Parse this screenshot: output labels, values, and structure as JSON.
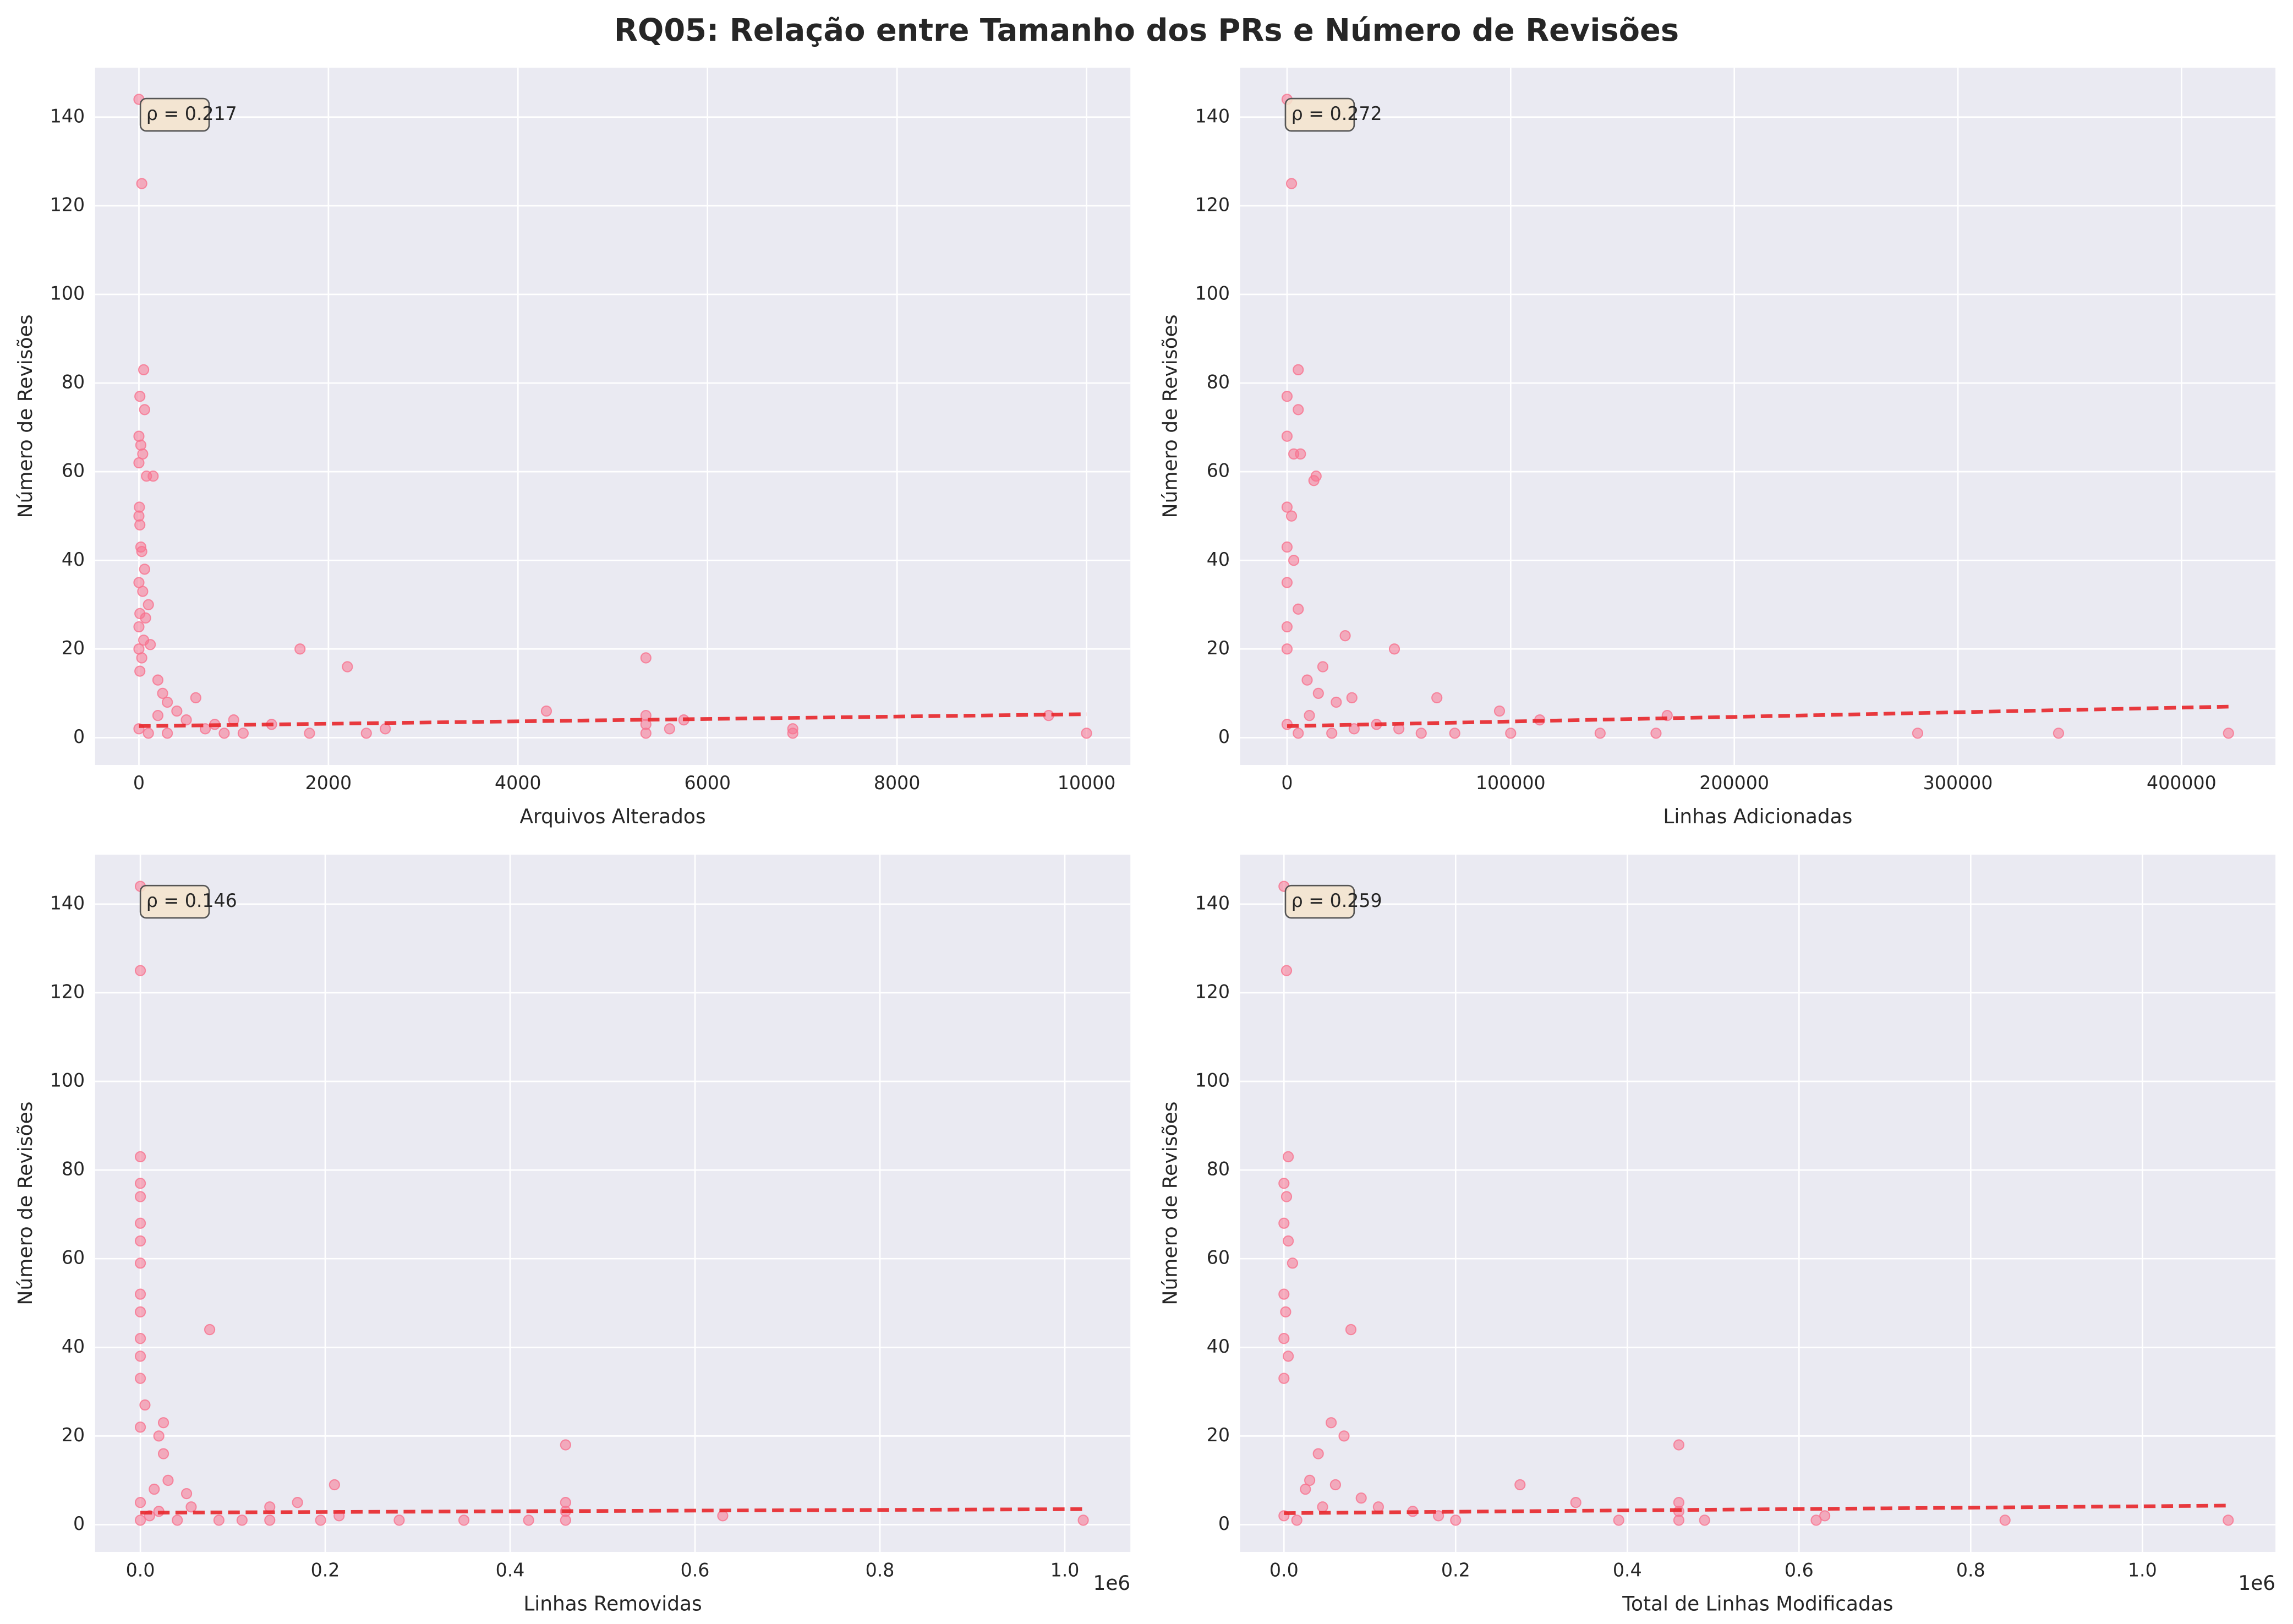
{
  "title": "RQ05: Relação entre Tamanho dos PRs e Número de Revisões",
  "chart_data": [
    {
      "type": "scatter",
      "xlabel": "Arquivos Alterados",
      "ylabel": "Número de Revisões",
      "annotation": "ρ = 0.217",
      "color": "#f7738f",
      "xlim": [
        -463,
        10463
      ],
      "ylim": [
        -6.15,
        151.15
      ],
      "xticks": [
        0,
        2000,
        4000,
        6000,
        8000,
        10000
      ],
      "yticks": [
        0,
        20,
        40,
        60,
        80,
        100,
        120,
        140
      ],
      "grid": true,
      "x": [
        0,
        30,
        50,
        10,
        60,
        0,
        20,
        40,
        0,
        80,
        150,
        5,
        0,
        10,
        20,
        30,
        60,
        0,
        40,
        100,
        10,
        70,
        0,
        50,
        120,
        0,
        30,
        200,
        10,
        250,
        300,
        400,
        500,
        600,
        700,
        800,
        900,
        1000,
        1100,
        1400,
        1700,
        1800,
        2200,
        2400,
        2600,
        4300,
        5350,
        5350,
        5350,
        5350,
        5600,
        5750,
        6900,
        6900,
        9600,
        10000,
        0,
        100,
        300,
        200
      ],
      "values": [
        144,
        125,
        83,
        77,
        74,
        68,
        66,
        64,
        62,
        59,
        59,
        52,
        50,
        48,
        43,
        42,
        38,
        35,
        33,
        30,
        28,
        27,
        25,
        22,
        21,
        20,
        18,
        13,
        15,
        10,
        8,
        6,
        4,
        9,
        2,
        3,
        1,
        4,
        1,
        3,
        20,
        1,
        16,
        1,
        2,
        6,
        18,
        5,
        3,
        1,
        2,
        4,
        2,
        1,
        5,
        1,
        2,
        1,
        1,
        5
      ],
      "trend": {
        "x": [
          0,
          10000
        ],
        "y": [
          2.6,
          5.3
        ],
        "color": "#e8262a"
      }
    },
    {
      "type": "scatter",
      "xlabel": "Linhas Adicionadas",
      "ylabel": "Número de Revisões",
      "annotation": "ρ = 0.272",
      "color": "#f7738f",
      "xlim": [
        -21000,
        442000
      ],
      "ylim": [
        -6.15,
        151.15
      ],
      "xticks": [
        0,
        100000,
        200000,
        300000,
        400000
      ],
      "yticks": [
        0,
        20,
        40,
        60,
        80,
        100,
        120,
        140
      ],
      "grid": true,
      "x": [
        0,
        2000,
        5000,
        0,
        5000,
        0,
        3000,
        6000,
        13000,
        12000,
        0,
        2000,
        0,
        3000,
        0,
        5000,
        0,
        26000,
        0,
        48000,
        16000,
        9000,
        14000,
        29000,
        67000,
        22000,
        95000,
        113000,
        170000,
        40000,
        60000,
        75000,
        100000,
        140000,
        165000,
        282000,
        345000,
        421000,
        30000,
        10000,
        0,
        5000,
        20000,
        50000
      ],
      "values": [
        144,
        125,
        83,
        77,
        74,
        68,
        64,
        64,
        59,
        58,
        52,
        50,
        43,
        40,
        35,
        29,
        25,
        23,
        20,
        20,
        16,
        13,
        10,
        9,
        9,
        8,
        6,
        4,
        5,
        3,
        1,
        1,
        1,
        1,
        1,
        1,
        1,
        1,
        2,
        5,
        3,
        1,
        1,
        2
      ],
      "trend": {
        "x": [
          0,
          421000
        ],
        "y": [
          2.6,
          7
        ],
        "color": "#e8262a"
      }
    },
    {
      "type": "scatter",
      "xlabel": "Linhas Removidas",
      "ylabel": "Número de Revisões",
      "annotation": "ρ = 0.146",
      "color": "#f7738f",
      "x_offset_label": "1e6",
      "xlim": [
        -49000,
        1071000
      ],
      "ylim": [
        -6.15,
        151.15
      ],
      "xticks": [
        {
          "value": 0,
          "label": "0.0"
        },
        {
          "value": 200000,
          "label": "0.2"
        },
        {
          "value": 400000,
          "label": "0.4"
        },
        {
          "value": 600000,
          "label": "0.6"
        },
        {
          "value": 800000,
          "label": "0.8"
        },
        {
          "value": 1000000,
          "label": "1.0"
        }
      ],
      "yticks": [
        0,
        20,
        40,
        60,
        80,
        100,
        120,
        140
      ],
      "grid": true,
      "x": [
        0,
        0,
        0,
        0,
        0,
        0,
        0,
        0,
        0,
        0,
        0,
        0,
        0,
        5000,
        0,
        75000,
        25000,
        20000,
        25000,
        30000,
        15000,
        50000,
        55000,
        20000,
        40000,
        85000,
        110000,
        140000,
        140000,
        170000,
        210000,
        215000,
        195000,
        280000,
        350000,
        420000,
        460000,
        460000,
        460000,
        460000,
        630000,
        1020000,
        0,
        10000,
        0
      ],
      "values": [
        144,
        125,
        83,
        77,
        74,
        68,
        64,
        59,
        52,
        48,
        42,
        38,
        33,
        27,
        22,
        44,
        23,
        20,
        16,
        10,
        8,
        7,
        4,
        3,
        1,
        1,
        1,
        4,
        1,
        5,
        9,
        2,
        1,
        1,
        1,
        1,
        18,
        5,
        3,
        1,
        2,
        1,
        1,
        2,
        5
      ],
      "trend": {
        "x": [
          0,
          1020000
        ],
        "y": [
          2.7,
          3.5
        ],
        "color": "#e8262a"
      }
    },
    {
      "type": "scatter",
      "xlabel": "Total de Linhas Modificadas",
      "ylabel": "Número de Revisões",
      "annotation": "ρ = 0.259",
      "color": "#f7738f",
      "x_offset_label": "1e6",
      "xlim": [
        -51100,
        1155000
      ],
      "ylim": [
        -6.15,
        151.15
      ],
      "xticks": [
        {
          "value": 0,
          "label": "0.0"
        },
        {
          "value": 200000,
          "label": "0.2"
        },
        {
          "value": 400000,
          "label": "0.4"
        },
        {
          "value": 600000,
          "label": "0.6"
        },
        {
          "value": 800000,
          "label": "0.8"
        },
        {
          "value": 1000000,
          "label": "1.0"
        }
      ],
      "yticks": [
        0,
        20,
        40,
        60,
        80,
        100,
        120,
        140
      ],
      "grid": true,
      "x": [
        0,
        3000,
        5000,
        0,
        3000,
        0,
        5000,
        10000,
        0,
        2000,
        0,
        5000,
        0,
        78000,
        55000,
        70000,
        40000,
        30000,
        60000,
        25000,
        90000,
        110000,
        150000,
        180000,
        200000,
        275000,
        340000,
        390000,
        460000,
        460000,
        460000,
        460000,
        490000,
        620000,
        630000,
        840000,
        1100000,
        0,
        15000,
        45000
      ],
      "values": [
        144,
        125,
        83,
        77,
        74,
        68,
        64,
        59,
        52,
        48,
        42,
        38,
        33,
        44,
        23,
        20,
        16,
        10,
        9,
        8,
        6,
        4,
        3,
        2,
        1,
        9,
        5,
        1,
        18,
        5,
        3,
        1,
        1,
        1,
        2,
        1,
        1,
        2,
        1,
        4
      ],
      "trend": {
        "x": [
          0,
          1100000
        ],
        "y": [
          2.6,
          4.3
        ],
        "color": "#e8262a"
      }
    }
  ]
}
